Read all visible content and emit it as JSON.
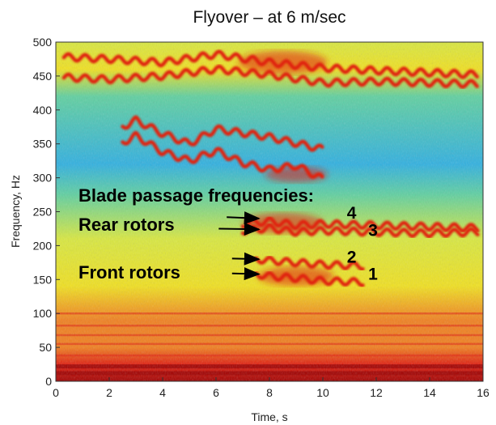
{
  "chart_data": {
    "type": "heatmap",
    "title": "Flyover – at 6 m/sec",
    "xlabel": "Time, s",
    "ylabel": "Frequency, Hz",
    "xlim": [
      0,
      16
    ],
    "ylim": [
      0,
      500
    ],
    "xticks": [
      "0",
      "2",
      "4",
      "6",
      "8",
      "10",
      "12",
      "14",
      "16"
    ],
    "yticks": [
      "0",
      "50",
      "100",
      "150",
      "200",
      "250",
      "300",
      "350",
      "400",
      "450",
      "500"
    ],
    "colormap": [
      "#2060d0",
      "#30b0e0",
      "#60d0a0",
      "#d8e840",
      "#f0e020",
      "#f08020",
      "#e02010",
      "#a00000"
    ],
    "ridges": [
      {
        "x": [
          0.3,
          2,
          4,
          6,
          8,
          10,
          12,
          14,
          15.8
        ],
        "y": [
          478,
          475,
          470,
          482,
          470,
          462,
          458,
          455,
          452
        ]
      },
      {
        "x": [
          0.3,
          2,
          4,
          6,
          8,
          10,
          12,
          14,
          15.8
        ],
        "y": [
          448,
          445,
          450,
          460,
          452,
          440,
          442,
          440,
          438
        ]
      },
      {
        "x": [
          2.5,
          3,
          4,
          5,
          6,
          8,
          10
        ],
        "y": [
          375,
          385,
          365,
          350,
          372,
          360,
          342
        ]
      },
      {
        "x": [
          2.5,
          3,
          4,
          5,
          6,
          7,
          8,
          9,
          10
        ],
        "y": [
          352,
          362,
          338,
          325,
          340,
          322,
          312,
          318,
          298
        ]
      },
      {
        "x": [
          7,
          8,
          9,
          10,
          12,
          14,
          15.8
        ],
        "y": [
          232,
          236,
          230,
          232,
          230,
          228,
          226
        ]
      },
      {
        "x": [
          7,
          8,
          9,
          10,
          12,
          14,
          15.8
        ],
        "y": [
          222,
          226,
          220,
          222,
          220,
          218,
          220
        ]
      },
      {
        "x": [
          7.5,
          8,
          9,
          10,
          11.5
        ],
        "y": [
          180,
          178,
          175,
          172,
          170
        ]
      },
      {
        "x": [
          7.5,
          8,
          9,
          10,
          11.5
        ],
        "y": [
          158,
          155,
          152,
          148,
          146
        ]
      }
    ],
    "hotspots": [
      {
        "x": 8.5,
        "y": 470,
        "level": 1.0
      },
      {
        "x": 8.5,
        "y": 233,
        "level": 0.9
      },
      {
        "x": 9.0,
        "y": 155,
        "level": 0.85
      },
      {
        "x": 9.0,
        "y": 305,
        "level": 0.7
      }
    ],
    "annotations": {
      "title_line": "Blade passage frequencies:",
      "rear": "Rear rotors",
      "front": "Front rotors",
      "labels": [
        {
          "text": "4",
          "x": 10.9,
          "y": 240
        },
        {
          "text": "3",
          "x": 11.7,
          "y": 214
        },
        {
          "text": "2",
          "x": 10.9,
          "y": 175
        },
        {
          "text": "1",
          "x": 11.7,
          "y": 150
        }
      ],
      "arrows": [
        {
          "from": [
            6.4,
            242
          ],
          "to": [
            7.6,
            240
          ]
        },
        {
          "from": [
            6.1,
            225
          ],
          "to": [
            7.6,
            224
          ]
        },
        {
          "from": [
            6.6,
            181
          ],
          "to": [
            7.6,
            180
          ]
        },
        {
          "from": [
            6.6,
            159
          ],
          "to": [
            7.6,
            158
          ]
        }
      ]
    }
  }
}
